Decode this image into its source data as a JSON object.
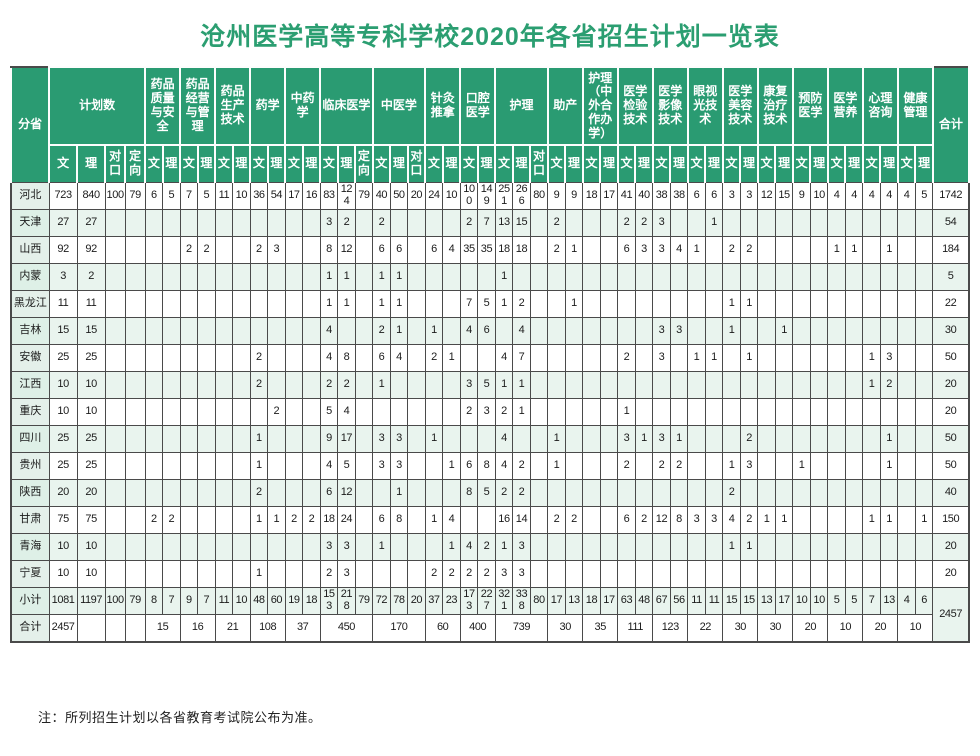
{
  "title": "沧州医学高等专科学校2020年各省招生计划一览表",
  "note": "注：所列招生计划以各省教育考试院公布为准。",
  "table": {
    "province_header": "分省",
    "total_header": "合计",
    "groups": [
      {
        "label": "计划数",
        "cols": [
          "文",
          "理",
          "对口",
          "定向"
        ]
      },
      {
        "label": "药品质量与安全",
        "cols": [
          "文",
          "理"
        ]
      },
      {
        "label": "药品经营与管理",
        "cols": [
          "文",
          "理"
        ]
      },
      {
        "label": "药品生产技术",
        "cols": [
          "文",
          "理"
        ]
      },
      {
        "label": "药学",
        "cols": [
          "文",
          "理"
        ]
      },
      {
        "label": "中药学",
        "cols": [
          "文",
          "理"
        ]
      },
      {
        "label": "临床医学",
        "cols": [
          "文",
          "理",
          "定向"
        ]
      },
      {
        "label": "中医学",
        "cols": [
          "文",
          "理",
          "对口"
        ]
      },
      {
        "label": "针灸推拿",
        "cols": [
          "文",
          "理"
        ]
      },
      {
        "label": "口腔医学",
        "cols": [
          "文",
          "理"
        ]
      },
      {
        "label": "护理",
        "cols": [
          "文",
          "理",
          "对口"
        ]
      },
      {
        "label": "助产",
        "cols": [
          "文",
          "理"
        ]
      },
      {
        "label": "护理（中外合作办学）",
        "cols": [
          "文",
          "理"
        ]
      },
      {
        "label": "医学检验技术",
        "cols": [
          "文",
          "理"
        ]
      },
      {
        "label": "医学影像技术",
        "cols": [
          "文",
          "理"
        ]
      },
      {
        "label": "眼视光技术",
        "cols": [
          "文",
          "理"
        ]
      },
      {
        "label": "医学美容技术",
        "cols": [
          "文",
          "理"
        ]
      },
      {
        "label": "康复治疗技术",
        "cols": [
          "文",
          "理"
        ]
      },
      {
        "label": "预防医学",
        "cols": [
          "文",
          "理"
        ]
      },
      {
        "label": "医学营养",
        "cols": [
          "文",
          "理"
        ]
      },
      {
        "label": "心理咨询",
        "cols": [
          "文",
          "理"
        ]
      },
      {
        "label": "健康管理",
        "cols": [
          "文",
          "理"
        ]
      }
    ],
    "rows": [
      {
        "name": "河北",
        "cells": [
          723,
          840,
          100,
          79,
          6,
          5,
          7,
          5,
          11,
          10,
          36,
          54,
          17,
          16,
          83,
          124,
          79,
          40,
          50,
          20,
          24,
          10,
          100,
          149,
          251,
          266,
          80,
          9,
          9,
          18,
          17,
          41,
          40,
          38,
          38,
          6,
          6,
          3,
          3,
          12,
          15,
          9,
          10,
          4,
          4,
          4,
          4,
          4,
          5
        ],
        "total": 1742
      },
      {
        "name": "天津",
        "cells": [
          27,
          27,
          "",
          "",
          "",
          "",
          "",
          "",
          "",
          "",
          "",
          "",
          "",
          "",
          3,
          2,
          "",
          2,
          "",
          "",
          "",
          "",
          2,
          7,
          13,
          15,
          "",
          2,
          "",
          "",
          "",
          2,
          2,
          3,
          "",
          "",
          1,
          "",
          "",
          "",
          "",
          "",
          "",
          "",
          "",
          "",
          "",
          "",
          ""
        ],
        "total": 54
      },
      {
        "name": "山西",
        "cells": [
          92,
          92,
          "",
          "",
          "",
          "",
          2,
          2,
          "",
          "",
          2,
          3,
          "",
          "",
          8,
          12,
          "",
          6,
          6,
          "",
          6,
          4,
          35,
          35,
          18,
          18,
          "",
          2,
          1,
          "",
          "",
          6,
          3,
          3,
          4,
          1,
          "",
          2,
          2,
          "",
          "",
          "",
          "",
          1,
          1,
          "",
          1,
          "",
          ""
        ],
        "total": 184
      },
      {
        "name": "内蒙",
        "cells": [
          3,
          2,
          "",
          "",
          "",
          "",
          "",
          "",
          "",
          "",
          "",
          "",
          "",
          "",
          1,
          1,
          "",
          1,
          1,
          "",
          "",
          "",
          "",
          "",
          1,
          "",
          "",
          "",
          "",
          "",
          "",
          "",
          "",
          "",
          "",
          "",
          "",
          "",
          "",
          "",
          "",
          "",
          "",
          "",
          "",
          "",
          "",
          "",
          ""
        ],
        "total": 5
      },
      {
        "name": "黑龙江",
        "cells": [
          11,
          11,
          "",
          "",
          "",
          "",
          "",
          "",
          "",
          "",
          "",
          "",
          "",
          "",
          1,
          1,
          "",
          1,
          1,
          "",
          "",
          "",
          7,
          5,
          1,
          2,
          "",
          "",
          1,
          "",
          "",
          "",
          "",
          "",
          "",
          "",
          "",
          1,
          1,
          "",
          "",
          "",
          "",
          "",
          "",
          "",
          "",
          "",
          ""
        ],
        "total": 22
      },
      {
        "name": "吉林",
        "cells": [
          15,
          15,
          "",
          "",
          "",
          "",
          "",
          "",
          "",
          "",
          "",
          "",
          "",
          "",
          4,
          "",
          "",
          2,
          1,
          "",
          1,
          "",
          4,
          6,
          "",
          4,
          "",
          "",
          "",
          "",
          "",
          "",
          "",
          3,
          3,
          "",
          "",
          1,
          "",
          "",
          1,
          "",
          "",
          "",
          "",
          "",
          "",
          "",
          ""
        ],
        "total": 30
      },
      {
        "name": "安徽",
        "cells": [
          25,
          25,
          "",
          "",
          "",
          "",
          "",
          "",
          "",
          "",
          2,
          "",
          "",
          "",
          4,
          8,
          "",
          6,
          4,
          "",
          2,
          1,
          "",
          "",
          4,
          7,
          "",
          "",
          "",
          "",
          "",
          2,
          "",
          3,
          "",
          1,
          1,
          "",
          1,
          "",
          "",
          "",
          "",
          "",
          "",
          1,
          3,
          "",
          ""
        ],
        "total": 50
      },
      {
        "name": "江西",
        "cells": [
          10,
          10,
          "",
          "",
          "",
          "",
          "",
          "",
          "",
          "",
          2,
          "",
          "",
          "",
          2,
          2,
          "",
          1,
          "",
          "",
          "",
          "",
          3,
          5,
          1,
          1,
          "",
          "",
          "",
          "",
          "",
          "",
          "",
          "",
          "",
          "",
          "",
          "",
          "",
          "",
          "",
          "",
          "",
          "",
          "",
          1,
          2,
          "",
          ""
        ],
        "total": 20
      },
      {
        "name": "重庆",
        "cells": [
          10,
          10,
          "",
          "",
          "",
          "",
          "",
          "",
          "",
          "",
          "",
          2,
          "",
          "",
          5,
          4,
          "",
          "",
          "",
          "",
          "",
          "",
          2,
          3,
          2,
          1,
          "",
          "",
          "",
          "",
          "",
          1,
          "",
          "",
          "",
          "",
          "",
          "",
          "",
          "",
          "",
          "",
          "",
          "",
          "",
          "",
          "",
          "",
          ""
        ],
        "total": 20
      },
      {
        "name": "四川",
        "cells": [
          25,
          25,
          "",
          "",
          "",
          "",
          "",
          "",
          "",
          "",
          1,
          "",
          "",
          "",
          9,
          17,
          "",
          3,
          3,
          "",
          1,
          "",
          "",
          "",
          4,
          "",
          "",
          1,
          "",
          "",
          "",
          3,
          1,
          3,
          1,
          "",
          "",
          "",
          2,
          "",
          "",
          "",
          "",
          "",
          "",
          "",
          1,
          "",
          ""
        ],
        "total": 50
      },
      {
        "name": "贵州",
        "cells": [
          25,
          25,
          "",
          "",
          "",
          "",
          "",
          "",
          "",
          "",
          1,
          "",
          "",
          "",
          4,
          5,
          "",
          3,
          3,
          "",
          "",
          1,
          6,
          8,
          4,
          2,
          "",
          1,
          "",
          "",
          "",
          2,
          "",
          2,
          2,
          "",
          "",
          1,
          3,
          "",
          "",
          1,
          "",
          "",
          "",
          "",
          1,
          "",
          ""
        ],
        "total": 50
      },
      {
        "name": "陕西",
        "cells": [
          20,
          20,
          "",
          "",
          "",
          "",
          "",
          "",
          "",
          "",
          2,
          "",
          "",
          "",
          6,
          12,
          "",
          "",
          1,
          "",
          "",
          "",
          8,
          5,
          2,
          2,
          "",
          "",
          "",
          "",
          "",
          "",
          "",
          "",
          "",
          "",
          "",
          2,
          "",
          "",
          "",
          "",
          "",
          "",
          "",
          "",
          "",
          "",
          ""
        ],
        "total": 40
      },
      {
        "name": "甘肃",
        "cells": [
          75,
          75,
          "",
          "",
          2,
          2,
          "",
          "",
          "",
          "",
          1,
          1,
          2,
          2,
          18,
          24,
          "",
          6,
          8,
          "",
          1,
          4,
          "",
          "",
          16,
          14,
          "",
          2,
          2,
          "",
          "",
          6,
          2,
          12,
          8,
          3,
          3,
          4,
          2,
          1,
          1,
          "",
          "",
          "",
          "",
          1,
          1,
          "",
          1
        ],
        "total": 150
      },
      {
        "name": "青海",
        "cells": [
          10,
          10,
          "",
          "",
          "",
          "",
          "",
          "",
          "",
          "",
          "",
          "",
          "",
          "",
          3,
          3,
          "",
          1,
          "",
          "",
          "",
          1,
          4,
          2,
          1,
          3,
          "",
          "",
          "",
          "",
          "",
          "",
          "",
          "",
          "",
          "",
          "",
          1,
          1,
          "",
          "",
          "",
          "",
          "",
          "",
          "",
          "",
          "",
          ""
        ],
        "total": 20
      },
      {
        "name": "宁夏",
        "cells": [
          10,
          10,
          "",
          "",
          "",
          "",
          "",
          "",
          "",
          "",
          1,
          "",
          "",
          "",
          2,
          3,
          "",
          "",
          "",
          "",
          2,
          2,
          2,
          2,
          3,
          3,
          "",
          "",
          "",
          "",
          "",
          "",
          "",
          "",
          "",
          "",
          "",
          "",
          "",
          "",
          "",
          "",
          "",
          "",
          "",
          "",
          "",
          "",
          ""
        ],
        "total": 20
      },
      {
        "name": "小计",
        "cells": [
          1081,
          1197,
          100,
          79,
          8,
          7,
          9,
          7,
          11,
          10,
          48,
          60,
          19,
          18,
          153,
          218,
          79,
          72,
          78,
          20,
          37,
          23,
          173,
          227,
          321,
          338,
          80,
          17,
          13,
          18,
          17,
          63,
          48,
          67,
          56,
          11,
          11,
          15,
          15,
          13,
          17,
          10,
          10,
          5,
          5,
          7,
          13,
          4,
          6
        ],
        "total": 2457,
        "total_rowspan": 2
      }
    ],
    "grand_row": {
      "name": "合计",
      "plan": 2457,
      "plan_blanks": 3,
      "merged_values": [
        15,
        16,
        21,
        108,
        37,
        450,
        170,
        60,
        400,
        739,
        30,
        35,
        111,
        123,
        22,
        30,
        30,
        20,
        10,
        20,
        10
      ],
      "merged_spans": [
        2,
        2,
        2,
        2,
        2,
        3,
        3,
        2,
        2,
        3,
        2,
        2,
        2,
        2,
        2,
        2,
        2,
        2,
        2,
        2,
        2
      ]
    }
  },
  "colors": {
    "header_green": "#2a9b72",
    "title_green": "#2b9e71",
    "row_tint": "#e9f4ee",
    "province_tint": "#e4f0ea",
    "grid": "#4a4a4a"
  }
}
